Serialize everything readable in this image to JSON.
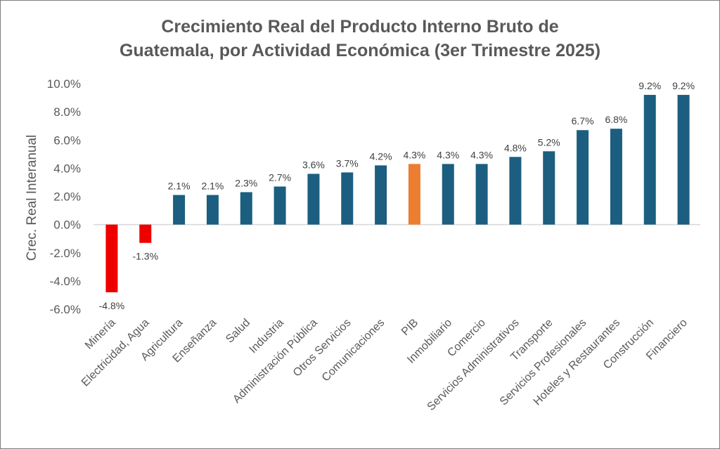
{
  "chart_data": {
    "type": "bar",
    "title": "Crecimiento Real del Producto Interno Bruto de Guatemala, por Actividad Económica (3er Trimestre 2025)",
    "title_lines": [
      "Crecimiento Real del Producto Interno Bruto de",
      "Guatemala, por Actividad Económica (3er Trimestre 2025)"
    ],
    "xlabel": "",
    "ylabel": "Crec. Real Interanual",
    "ylim": [
      -6,
      10
    ],
    "yticks": [
      10,
      8,
      6,
      4,
      2,
      0,
      -2,
      -4,
      -6
    ],
    "ytick_labels": [
      "10.0%",
      "8.0%",
      "6.0%",
      "4.0%",
      "2.0%",
      "0.0%",
      "-2.0%",
      "-4.0%",
      "-6.0%"
    ],
    "grid": false,
    "categories": [
      "Minería",
      "Electricidad, Agua",
      "Agricultura",
      "Enseñanza",
      "Salud",
      "Industria",
      "Administración Pública",
      "Otros Servicios",
      "Comunicaciones",
      "PIB",
      "Inmobiliario",
      "Comercio",
      "Servicios Administrativos",
      "Transporte",
      "Servicios Profesionales",
      "Hoteles y Restaurantes",
      "Construcción",
      "Financiero"
    ],
    "values": [
      -4.8,
      -1.3,
      2.1,
      2.1,
      2.3,
      2.7,
      3.6,
      3.7,
      4.2,
      4.3,
      4.3,
      4.3,
      4.8,
      5.2,
      6.7,
      6.8,
      9.2,
      9.2
    ],
    "data_labels": [
      "-4.8%",
      "-1.3%",
      "2.1%",
      "2.1%",
      "2.3%",
      "2.7%",
      "3.6%",
      "3.7%",
      "4.2%",
      "4.3%",
      "4.3%",
      "4.3%",
      "4.8%",
      "5.2%",
      "6.7%",
      "6.8%",
      "9.2%",
      "9.2%"
    ],
    "colors": {
      "positive": "#1b5e80",
      "negative": "#ee0000",
      "highlight": "#ed7d31"
    },
    "highlight_category": "PIB"
  }
}
